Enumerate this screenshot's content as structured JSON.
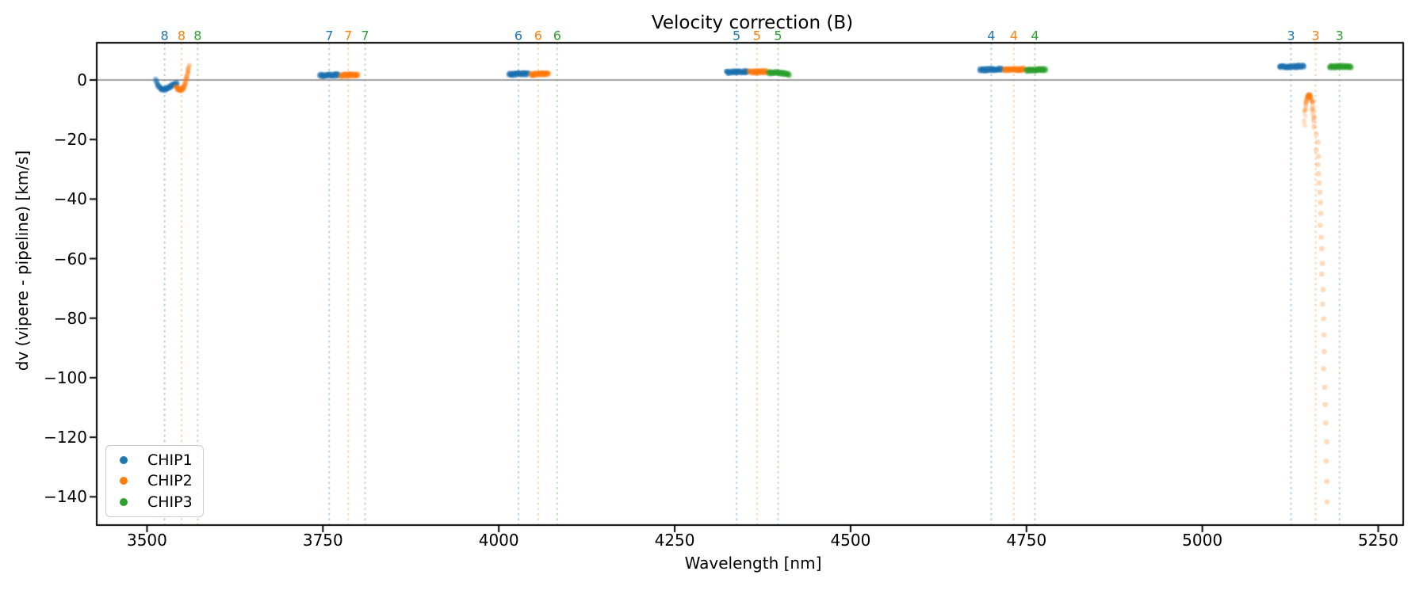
{
  "chart_data": {
    "type": "scatter",
    "title": "Velocity correction (B)",
    "xlabel": "Wavelength [nm]",
    "ylabel": "dv (vipere - pipeline) [km/s]",
    "xlim": [
      3428.5,
      5285.5
    ],
    "ylim": [
      -149.5,
      12.5
    ],
    "xticks": [
      3500,
      3750,
      4000,
      4250,
      4500,
      4750,
      5000,
      5250
    ],
    "yticks": [
      0,
      -20,
      -40,
      -60,
      -80,
      -100,
      -120,
      -140
    ],
    "zero_line": 0,
    "grid": false,
    "colors": {
      "CHIP1": "#1f77b4",
      "CHIP2": "#ff7f0e",
      "CHIP3": "#2ca02c"
    },
    "legend": {
      "position": "lower left",
      "entries": [
        "CHIP1",
        "CHIP2",
        "CHIP3"
      ]
    },
    "order_markers": [
      {
        "order": "8",
        "x": {
          "CHIP1": 3525,
          "CHIP2": 3549,
          "CHIP3": 3572
        }
      },
      {
        "order": "7",
        "x": {
          "CHIP1": 3759,
          "CHIP2": 3786,
          "CHIP3": 3810
        }
      },
      {
        "order": "6",
        "x": {
          "CHIP1": 4028,
          "CHIP2": 4056,
          "CHIP3": 4083
        }
      },
      {
        "order": "5",
        "x": {
          "CHIP1": 4338,
          "CHIP2": 4367,
          "CHIP3": 4397
        }
      },
      {
        "order": "4",
        "x": {
          "CHIP1": 4700,
          "CHIP2": 4732,
          "CHIP3": 4762
        }
      },
      {
        "order": "3",
        "x": {
          "CHIP1": 5126,
          "CHIP2": 5161,
          "CHIP3": 5195
        }
      }
    ],
    "series": [
      {
        "name": "CHIP1",
        "color": "#1f77b4",
        "clusters": [
          {
            "kind": "band",
            "points": [
              [
                3512,
                0.3
              ],
              [
                3515,
                -1.6
              ],
              [
                3519,
                -2.9
              ],
              [
                3523,
                -3.3
              ],
              [
                3527,
                -3.1
              ],
              [
                3532,
                -2.3
              ],
              [
                3537,
                -1.6
              ],
              [
                3543,
                -1.1
              ]
            ]
          },
          {
            "kind": "band",
            "points": [
              [
                3745,
                1.5
              ],
              [
                3773,
                1.7
              ]
            ]
          },
          {
            "kind": "band",
            "points": [
              [
                4014,
                1.9
              ],
              [
                4042,
                2.1
              ]
            ]
          },
          {
            "kind": "band",
            "points": [
              [
                4323,
                2.6
              ],
              [
                4354,
                2.8
              ]
            ]
          },
          {
            "kind": "band",
            "points": [
              [
                4683,
                3.4
              ],
              [
                4716,
                3.6
              ]
            ]
          },
          {
            "kind": "band",
            "points": [
              [
                5109,
                4.4
              ],
              [
                5145,
                4.6
              ]
            ]
          }
        ]
      },
      {
        "name": "CHIP2",
        "color": "#ff7f0e",
        "clusters": [
          {
            "kind": "band",
            "points": [
              [
                3541,
                -2.4
              ],
              [
                3544,
                -3.0
              ],
              [
                3548,
                -3.4
              ],
              [
                3551,
                -2.9
              ],
              [
                3554,
                -1.5
              ],
              [
                3556,
                0.6
              ],
              [
                3558,
                2.6
              ],
              [
                3560,
                4.9
              ]
            ]
          },
          {
            "kind": "band",
            "points": [
              [
                3775,
                1.5
              ],
              [
                3800,
                1.7
              ]
            ]
          },
          {
            "kind": "band",
            "points": [
              [
                4045,
                1.9
              ],
              [
                4071,
                2.1
              ]
            ]
          },
          {
            "kind": "band",
            "points": [
              [
                4356,
                2.6
              ],
              [
                4381,
                2.8
              ]
            ]
          },
          {
            "kind": "band",
            "points": [
              [
                4718,
                3.4
              ],
              [
                4747,
                3.6
              ]
            ]
          },
          {
            "kind": "band",
            "points": [
              [
                5145,
                -15.0
              ],
              [
                5146,
                -10.0
              ],
              [
                5148,
                -7.0
              ],
              [
                5150,
                -5.5
              ],
              [
                5152,
                -5.0
              ],
              [
                5154,
                -5.6
              ],
              [
                5156,
                -7.5
              ],
              [
                5157,
                -10.0
              ],
              [
                5158,
                -13.0
              ],
              [
                5159,
                -16.0
              ]
            ]
          },
          {
            "kind": "blob",
            "points": [
              [
                5151.5,
                -5.3
              ],
              [
                5152.5,
                -5.1
              ]
            ]
          },
          {
            "kind": "dots",
            "points": [
              [
                5162,
                -18.2
              ],
              [
                5164,
                -20.9
              ],
              [
                5162,
                -23.6
              ],
              [
                5165,
                -25.7
              ],
              [
                5164,
                -28.4
              ],
              [
                5165,
                -31.5
              ],
              [
                5166,
                -34.6
              ],
              [
                5167,
                -37.7
              ],
              [
                5168,
                -41.2
              ],
              [
                5168.5,
                -44.8
              ],
              [
                5167.5,
                -48.8
              ],
              [
                5169,
                -52.8
              ],
              [
                5169.8,
                -56.7
              ],
              [
                5170.5,
                -61.6
              ],
              [
                5169.8,
                -65.2
              ],
              [
                5171.6,
                -70.4
              ],
              [
                5171,
                -75.3
              ],
              [
                5172.4,
                -80.2
              ],
              [
                5172.8,
                -85.6
              ],
              [
                5173.5,
                -91.2
              ],
              [
                5172.4,
                -97.0
              ],
              [
                5173.9,
                -103.2
              ],
              [
                5174.7,
                -109.0
              ],
              [
                5175.4,
                -115.2
              ],
              [
                5176.6,
                -121.5
              ],
              [
                5175.8,
                -128.0
              ],
              [
                5176.9,
                -134.9
              ],
              [
                5177.2,
                -141.7
              ]
            ]
          }
        ]
      },
      {
        "name": "CHIP3",
        "color": "#2ca02c",
        "clusters": [
          {
            "kind": "band",
            "points": [
              [
                4383,
                2.5
              ],
              [
                4398,
                2.4
              ],
              [
                4406,
                2.2
              ],
              [
                4413,
                1.7
              ]
            ]
          },
          {
            "kind": "band",
            "points": [
              [
                4749,
                3.3
              ],
              [
                4778,
                3.5
              ]
            ]
          },
          {
            "kind": "band",
            "points": [
              [
                5180,
                4.3
              ],
              [
                5196,
                4.6
              ],
              [
                5212,
                4.4
              ]
            ]
          }
        ]
      }
    ]
  }
}
